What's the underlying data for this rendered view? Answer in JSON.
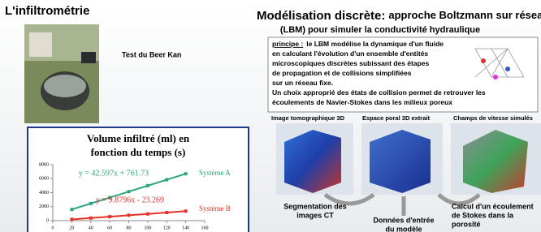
{
  "left": {
    "title": "L'infiltrométrie",
    "photo_caption": "Test du Beer Kan"
  },
  "chart_data": {
    "type": "line",
    "title_lines": [
      "Volume infiltré (ml) en",
      "fonction du temps (s)"
    ],
    "x": [
      20,
      40,
      60,
      80,
      100,
      120,
      140
    ],
    "series": [
      {
        "name": "Système A",
        "color": "#2aa57f",
        "equation": "y = 42.597x + 761.73",
        "values": [
          1600,
          2450,
          3300,
          4150,
          5000,
          5850,
          6700
        ]
      },
      {
        "name": "Système B",
        "color": "#e8312a",
        "equation": "y = 9.8796x - 23.269",
        "values": [
          180,
          370,
          570,
          770,
          960,
          1160,
          1360
        ]
      }
    ],
    "xlim": [
      0,
      160
    ],
    "xticks": [
      0,
      20,
      40,
      60,
      80,
      100,
      120,
      140,
      160
    ],
    "ylim": [
      0,
      8000
    ],
    "yticks": [
      0,
      2000,
      4000,
      6000,
      8000
    ]
  },
  "right": {
    "title_bold": "Modélisation discrète:",
    "title_rest": "approche Boltzmann sur réseau",
    "title_line2": "(LBM) pour simuler la conductivité hydraulique",
    "principe_label": "principe :",
    "principe_lines": [
      "le LBM modélise la dynamique d'un fluide",
      "en calculant l'évolution d'un ensemble d'entités",
      "microscopiques discrètes subissant des étapes",
      "de propagation et de collisions simplifiées",
      "sur un réseau fixe.",
      "Un choix approprié des états de collision permet de retrouver les",
      "écoulements de Navier-Stokes dans les milieux poreux"
    ],
    "images": [
      "Image tomographique 3D",
      "Espace poral 3D extrait",
      "Champs de vitesse simulés"
    ],
    "captions": [
      [
        "Segmentation des",
        "images CT"
      ],
      [
        "Données d'entrée",
        "du modèle"
      ],
      [
        "Calcul d'un écoulement",
        "de Stokes dans la",
        "porosité"
      ]
    ]
  }
}
